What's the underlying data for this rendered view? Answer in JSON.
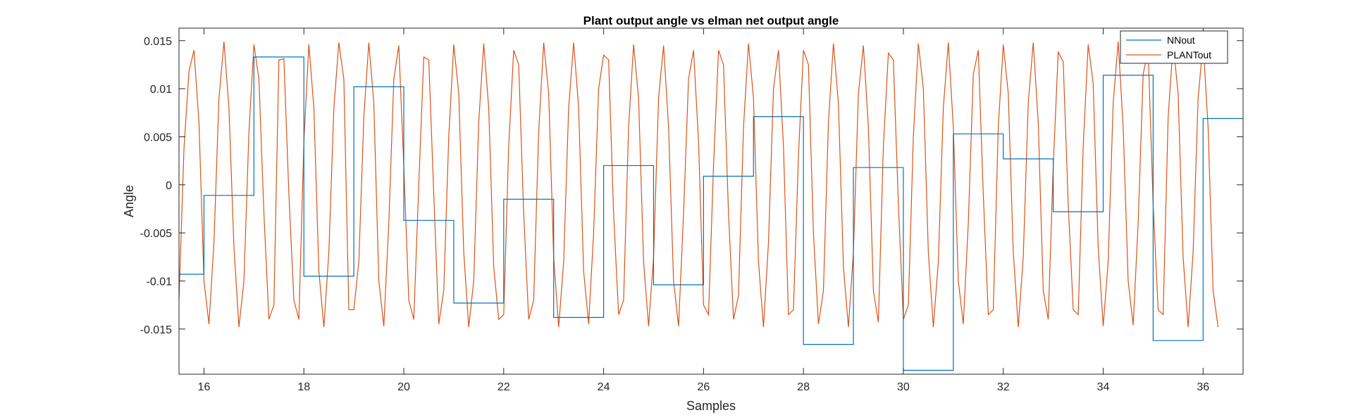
{
  "chart_data": {
    "type": "line",
    "title": "Plant output angle vs elman net output angle",
    "xlabel": "Samples",
    "ylabel": "Angle",
    "xlim": [
      15.5,
      36.8
    ],
    "ylim": [
      -0.0197,
      0.0163
    ],
    "xticks": [
      16,
      18,
      20,
      22,
      24,
      26,
      28,
      30,
      32,
      34,
      36
    ],
    "xtick_labels": [
      "16",
      "18",
      "20",
      "22",
      "24",
      "26",
      "28",
      "30",
      "32",
      "34",
      "36"
    ],
    "yticks": [
      -0.015,
      -0.01,
      -0.005,
      0,
      0.005,
      0.01,
      0.015
    ],
    "ytick_labels": [
      "-0.015",
      "-0.01",
      "-0.005",
      "0",
      "0.005",
      "0.01",
      "0.015"
    ],
    "grid": false,
    "legend_position": "top-right",
    "series": [
      {
        "name": "NNout",
        "color": "#0072BD",
        "style": "stairs",
        "x": [
          15.5,
          16,
          17,
          18,
          19,
          20,
          21,
          22,
          23,
          24,
          25,
          26,
          27,
          28,
          29,
          30,
          31,
          32,
          33,
          34,
          35,
          36,
          36.8
        ],
        "values": [
          -0.0093,
          -0.0011,
          0.0133,
          -0.0095,
          0.0102,
          -0.0037,
          -0.0123,
          -0.0015,
          -0.0138,
          0.002,
          -0.0104,
          0.0009,
          0.0071,
          -0.0166,
          0.0018,
          -0.0193,
          0.0053,
          0.0027,
          -0.0028,
          0.0114,
          -0.0162,
          0.0069,
          0.0069
        ]
      },
      {
        "name": "PLANTout",
        "color": "#D95319",
        "style": "line",
        "x_start": 15.5,
        "x_step": 0.1,
        "values": [
          -0.012,
          0.0038,
          0.0118,
          0.014,
          0.0065,
          -0.01,
          -0.0145,
          -0.006,
          0.009,
          0.0149,
          0.008,
          -0.0065,
          -0.0148,
          -0.01,
          0.0055,
          0.0146,
          0.011,
          -0.003,
          -0.014,
          -0.0125,
          0.013,
          0.0131,
          -0.001,
          -0.012,
          -0.014,
          0.0045,
          0.0146,
          0.008,
          -0.009,
          -0.0148,
          -0.007,
          0.008,
          0.0148,
          0.011,
          -0.013,
          -0.013,
          -0.008,
          0.007,
          0.0148,
          0.0085,
          -0.01,
          -0.0147,
          -0.004,
          0.011,
          0.0145,
          0.002,
          -0.012,
          -0.014,
          0.0,
          0.0133,
          0.013,
          -0.001,
          -0.0145,
          -0.011,
          0.005,
          0.0146,
          0.0095,
          -0.007,
          -0.0148,
          -0.01,
          0.0065,
          0.0147,
          0.008,
          -0.0085,
          -0.014,
          -0.0135,
          0.004,
          0.014,
          0.0125,
          -0.003,
          -0.014,
          -0.012,
          0.0055,
          0.0148,
          0.0095,
          -0.0075,
          -0.0148,
          -0.008,
          0.008,
          0.0148,
          0.008,
          -0.009,
          -0.0145,
          -0.005,
          0.01,
          0.0135,
          0.013,
          -0.003,
          -0.0135,
          -0.012,
          0.006,
          0.0146,
          0.009,
          -0.008,
          -0.0147,
          -0.0075,
          0.009,
          0.0145,
          0.006,
          -0.01,
          -0.0147,
          -0.003,
          0.011,
          0.014,
          0.0045,
          -0.0125,
          -0.0135,
          0.002,
          0.014,
          0.0125,
          -0.003,
          -0.014,
          -0.0115,
          0.006,
          0.0147,
          0.009,
          -0.008,
          -0.0148,
          -0.006,
          0.01,
          0.014,
          0.004,
          -0.0135,
          -0.013,
          0.003,
          0.014,
          0.0125,
          -0.005,
          -0.0145,
          -0.011,
          0.0065,
          0.0147,
          0.0085,
          -0.0085,
          -0.0148,
          -0.007,
          0.0095,
          0.0145,
          0.006,
          -0.011,
          -0.0143,
          0.004,
          0.0137,
          0.013,
          -0.002,
          -0.014,
          -0.0125,
          0.005,
          0.0147,
          0.01,
          -0.007,
          -0.0148,
          -0.008,
          0.008,
          0.0148,
          0.006,
          -0.01,
          -0.0145,
          -0.004,
          0.0115,
          0.014,
          -0.001,
          -0.0135,
          -0.013,
          0.006,
          0.0146,
          0.0095,
          -0.007,
          -0.0148,
          -0.0075,
          0.0085,
          0.0148,
          0.0065,
          -0.011,
          -0.014,
          0.002,
          0.0138,
          0.0128,
          -0.002,
          -0.013,
          -0.0135,
          0.004,
          0.0146,
          0.0105,
          -0.0065,
          -0.0147,
          -0.008,
          0.0085,
          0.0149,
          0.006,
          -0.01,
          -0.0146,
          -0.004,
          0.0115,
          0.014,
          -0.002,
          -0.013,
          -0.0135,
          0.007,
          0.0147,
          0.0095,
          -0.0075,
          -0.0148,
          -0.007,
          0.009,
          0.0148,
          0.006,
          -0.011,
          -0.0148
        ]
      }
    ]
  }
}
